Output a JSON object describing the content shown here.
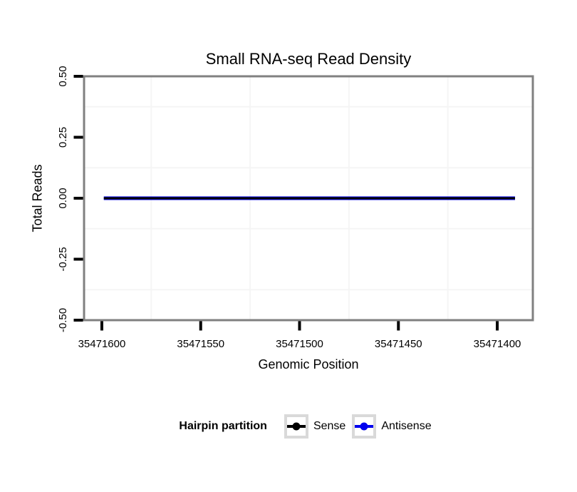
{
  "chart_data": {
    "type": "line",
    "title": "Small RNA-seq Read Density",
    "xlabel": "Genomic Position",
    "ylabel": "Total Reads",
    "x_axis": {
      "reversed": true,
      "domain": [
        35471609,
        35471382
      ],
      "ticks": [
        35471600,
        35471550,
        35471500,
        35471450,
        35471400
      ],
      "tick_labels": [
        "35471600",
        "35471550",
        "35471500",
        "35471450",
        "35471400"
      ]
    },
    "y_axis": {
      "domain": [
        -0.5,
        0.5
      ],
      "ticks": [
        0.5,
        0.25,
        0,
        -0.25,
        -0.5
      ],
      "tick_labels": [
        "0.50",
        "0.25",
        "0.00",
        "-0.25",
        "-0.50"
      ]
    },
    "grid": {
      "minor_only": true,
      "color": "#f5f5f5"
    },
    "panel": {
      "background": "#ffffff",
      "border_color": "#808080"
    },
    "series": [
      {
        "name": "Sense",
        "color": "#000000",
        "y": 0,
        "x_start": 35471599,
        "x_end": 35471391
      },
      {
        "name": "Antisense",
        "color": "#0000EE",
        "y": 0,
        "x_start": 35471599,
        "x_end": 35471391
      }
    ],
    "legend": {
      "title": "Hairpin partition",
      "position": "bottom",
      "entries": [
        {
          "label": "Sense",
          "color": "#000000"
        },
        {
          "label": "Antisense",
          "color": "#0000EE"
        }
      ]
    }
  }
}
